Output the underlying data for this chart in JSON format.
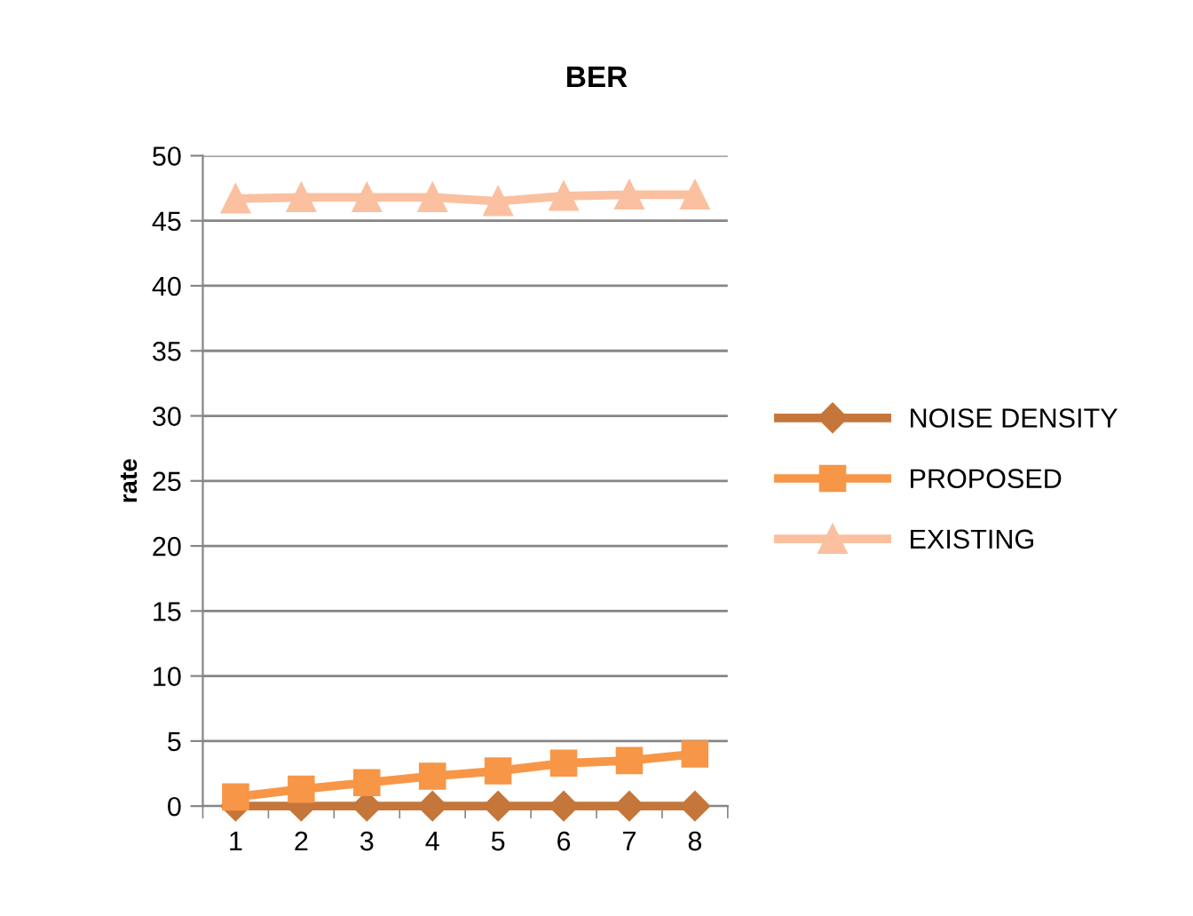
{
  "chart_data": {
    "type": "line",
    "title": "BER",
    "ylabel": "rate",
    "categories": [
      "1",
      "2",
      "3",
      "4",
      "5",
      "6",
      "7",
      "8"
    ],
    "series": [
      {
        "name": "NOISE DENSITY",
        "color": "#c5763a",
        "marker": "diamond",
        "values": [
          0,
          0,
          0,
          0,
          0,
          0,
          0,
          0
        ]
      },
      {
        "name": "PROPOSED",
        "color": "#f79646",
        "marker": "square",
        "values": [
          0.7,
          1.3,
          1.8,
          2.3,
          2.7,
          3.3,
          3.5,
          4.0
        ]
      },
      {
        "name": "EXISTING",
        "color": "#fac09f",
        "marker": "triangle",
        "values": [
          46.7,
          46.8,
          46.8,
          46.8,
          46.5,
          46.9,
          47.0,
          47.0
        ]
      }
    ],
    "ylim": [
      0,
      50
    ],
    "yticks": [
      0,
      5,
      10,
      15,
      20,
      25,
      30,
      35,
      40,
      45,
      50
    ],
    "grid": "y",
    "legend": "right"
  }
}
